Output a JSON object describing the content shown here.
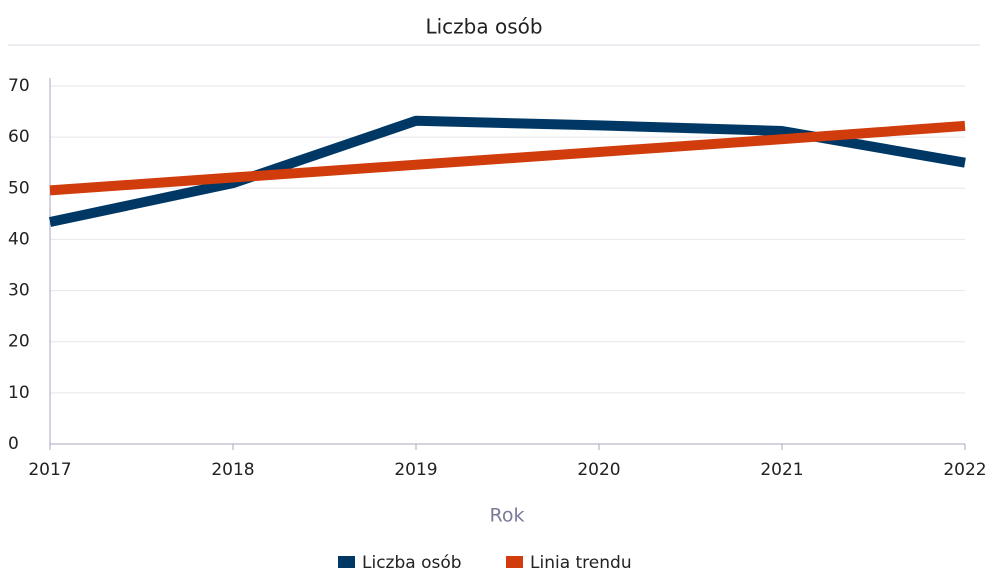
{
  "chart_data": {
    "type": "line",
    "title": "Liczba osób",
    "x_label": "Rok",
    "x": [
      2017,
      2018,
      2019,
      2020,
      2021,
      2022
    ],
    "series": [
      {
        "name": "Liczba osób",
        "color": "#003865",
        "values": [
          43.4,
          51,
          63.2,
          62.3,
          61.2,
          55
        ]
      },
      {
        "name": "Linia trendu",
        "color": "#d03c0c",
        "values": [
          49.6,
          52.1,
          54.6,
          57.1,
          59.6,
          62.2
        ]
      }
    ],
    "xlim": [
      2017,
      2022
    ],
    "xticks": [
      2017,
      2018,
      2019,
      2020,
      2021,
      2022
    ],
    "ylim": [
      0,
      70
    ],
    "yticks": [
      0,
      10,
      20,
      30,
      40,
      50,
      60,
      70
    ],
    "grid": true,
    "legend": "bottom"
  }
}
